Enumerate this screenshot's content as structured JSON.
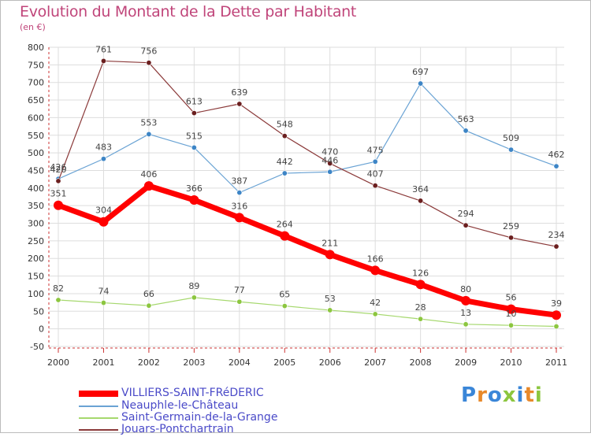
{
  "header": {
    "title": "Evolution du Montant de la Dette par Habitant",
    "subtitle": "(en €)"
  },
  "logo": {
    "text": "Proxiti",
    "colors": [
      "#3a86d8",
      "#e8892a",
      "#3a86d8",
      "#8cc63f",
      "#3a86d8",
      "#e8892a",
      "#8cc63f"
    ]
  },
  "chart_data": {
    "type": "line",
    "title": "Evolution du Montant de la Dette par Habitant",
    "ylabel": "",
    "xlabel": "",
    "ylim": [
      -50,
      800
    ],
    "yticks": [
      -50,
      0,
      50,
      100,
      150,
      200,
      250,
      300,
      350,
      400,
      450,
      500,
      550,
      600,
      650,
      700,
      750,
      800
    ],
    "grid": true,
    "legend_position": "bottom-left",
    "categories": [
      "2000",
      "2001",
      "2002",
      "2003",
      "2004",
      "2005",
      "2006",
      "2007",
      "2008",
      "2009",
      "2010",
      "2011"
    ],
    "series": [
      {
        "name": "VILLIERS-SAINT-FRéDERIC",
        "color": "#ff0000",
        "marker": "#ff0000",
        "width": 7,
        "values": [
          351,
          304,
          406,
          366,
          316,
          264,
          211,
          166,
          126,
          80,
          56,
          39
        ],
        "labels": [
          "351",
          "304",
          "406",
          "366",
          "316",
          "264",
          "211",
          "166",
          "126",
          "80",
          "56",
          "39"
        ]
      },
      {
        "name": "Neauphle-le-Château",
        "color": "#6aa3d4",
        "marker": "#3d85c6",
        "width": 1.2,
        "values": [
          426,
          483,
          553,
          515,
          387,
          442,
          446,
          475,
          697,
          563,
          509,
          462
        ],
        "labels": [
          "426",
          "483",
          "553",
          "515",
          "387",
          "442",
          "446",
          "475",
          "697",
          "563",
          "509",
          "462"
        ]
      },
      {
        "name": "Saint-Germain-de-la-Grange",
        "color": "#a6d86e",
        "marker": "#8cc63f",
        "width": 1.2,
        "values": [
          82,
          74,
          66,
          89,
          77,
          65,
          53,
          42,
          28,
          13,
          10,
          7
        ],
        "labels": [
          "82",
          "74",
          "66",
          "89",
          "77",
          "65",
          "53",
          "42",
          "28",
          "13",
          "10",
          ""
        ]
      },
      {
        "name": "Jouars-Pontchartrain",
        "color": "#8b3a3a",
        "marker": "#6b1f1f",
        "width": 1.2,
        "values": [
          420,
          761,
          756,
          613,
          639,
          548,
          470,
          407,
          364,
          294,
          259,
          234
        ],
        "labels": [
          "420",
          "761",
          "756",
          "613",
          "639",
          "548",
          "470",
          "407",
          "364",
          "294",
          "259",
          "234"
        ]
      }
    ]
  }
}
